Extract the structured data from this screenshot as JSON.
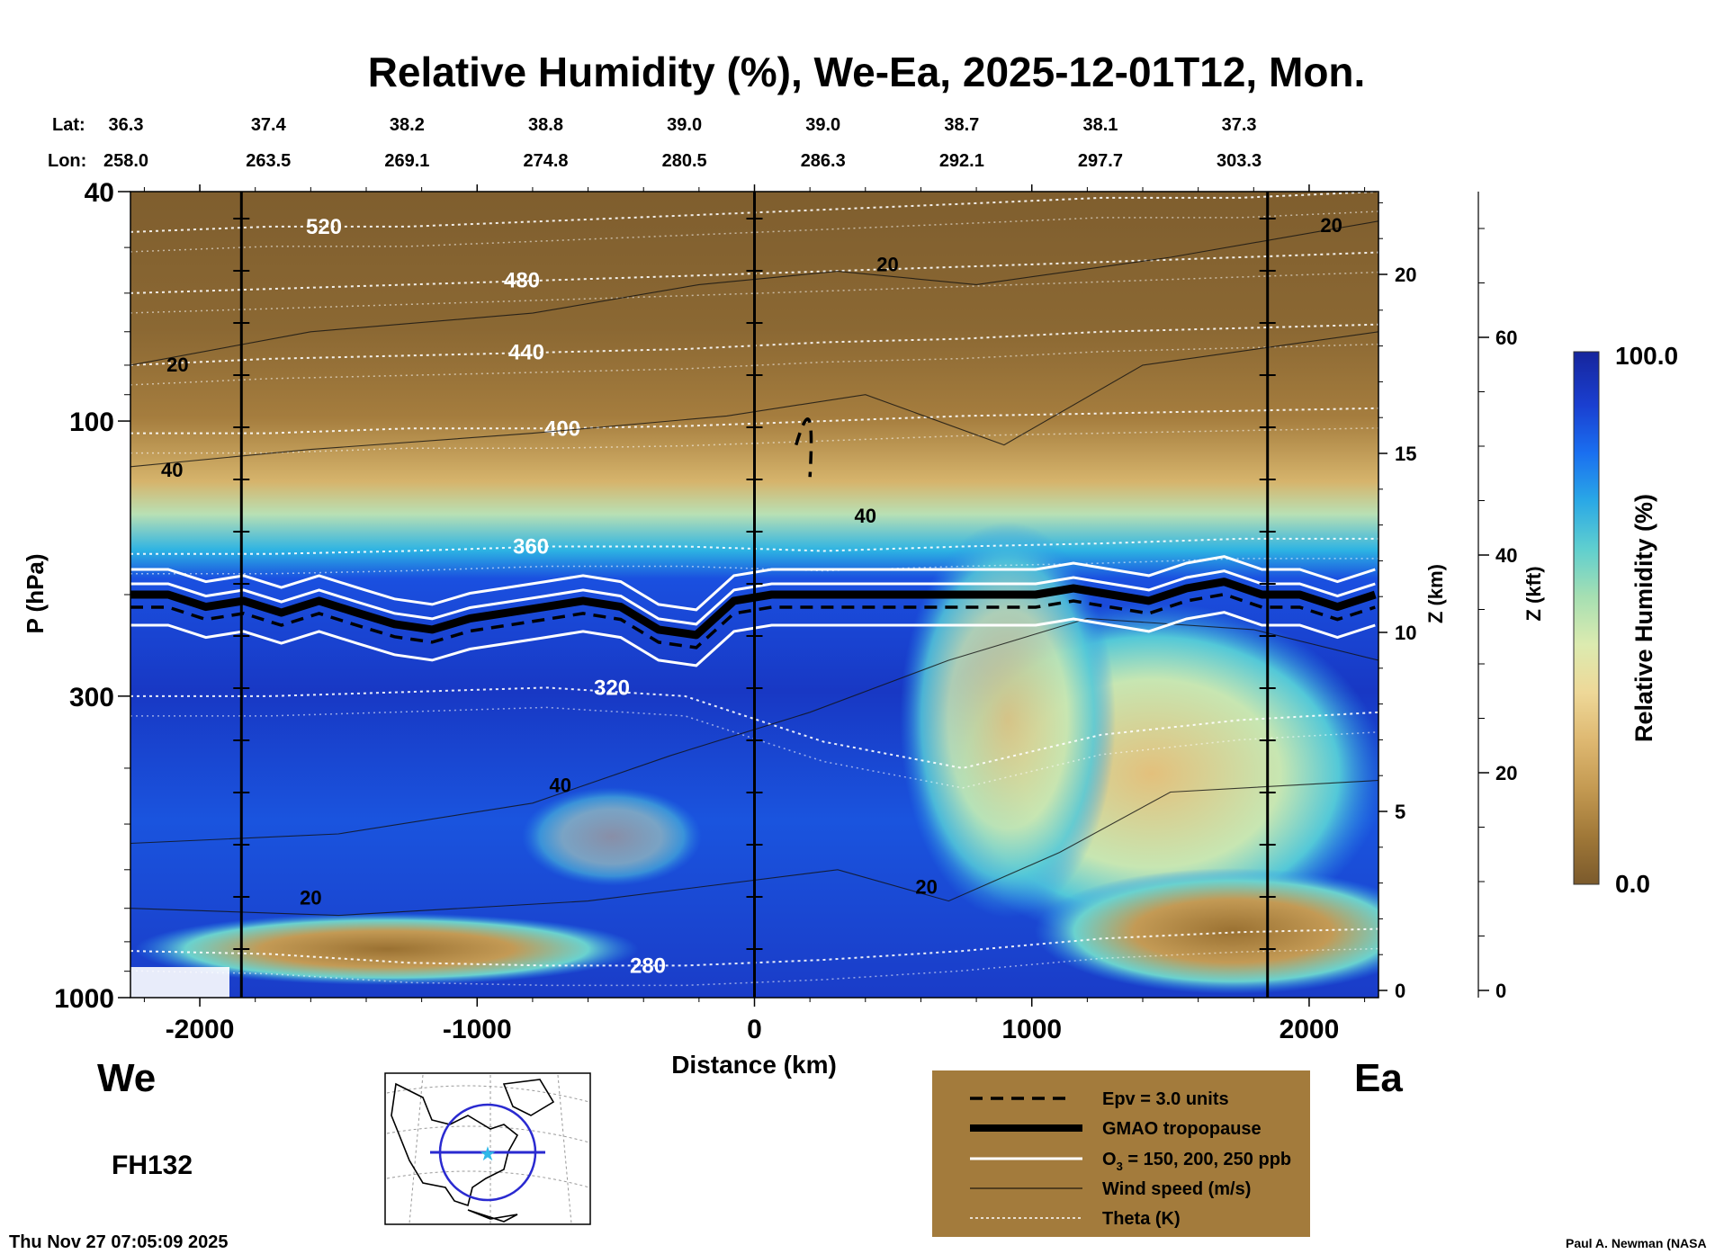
{
  "chart_data": {
    "type": "heatmap",
    "title": "Relative Humidity (%), We-Ea, 2025-12-01T12, Mon.",
    "xlabel": "Distance (km)",
    "ylabel": "P (hPa)",
    "y2label": "Z (km)",
    "y3label": "Z (kft)",
    "xlim": [
      -2250,
      2250
    ],
    "ylim": [
      1000,
      40
    ],
    "yscale": "log",
    "x_ticks": [
      -2000,
      -1000,
      0,
      1000,
      2000
    ],
    "x_tick_labels": [
      "-2000",
      "-1000",
      "0",
      "1000",
      "2000"
    ],
    "y_ticks": [
      40,
      100,
      300,
      1000
    ],
    "y_tick_labels": [
      "40",
      "100",
      "300",
      "1000"
    ],
    "z_km_ticks": [
      0,
      5,
      10,
      15,
      20
    ],
    "z_km_tick_labels": [
      "0",
      "5",
      "10",
      "15",
      "20"
    ],
    "z_kft_ticks": [
      0,
      20,
      40,
      60
    ],
    "z_kft_tick_labels": [
      "0",
      "20",
      "40",
      "60"
    ],
    "lat_label": "Lat:",
    "lon_label": "Lon:",
    "lat": [
      "36.3",
      "37.4",
      "38.2",
      "38.8",
      "39.0",
      "39.0",
      "38.7",
      "38.1",
      "37.3"
    ],
    "lon": [
      "258.0",
      "263.5",
      "269.1",
      "274.8",
      "280.5",
      "286.3",
      "292.1",
      "297.7",
      "303.3"
    ],
    "lat_lon_x": [
      -2250,
      -1850,
      -1350,
      -850,
      -350,
      150,
      650,
      1150,
      1650
    ],
    "vertical_markers_x": [
      -1850,
      0,
      1850
    ],
    "left_end_label": "We",
    "right_end_label": "Ea",
    "colorbar": {
      "label": "Relative Humidity (%)",
      "min": 0.0,
      "max": 100.0,
      "min_label": "0.0",
      "max_label": "100.0",
      "colors": [
        "#7b5a2c",
        "#a07838",
        "#c49a52",
        "#deb871",
        "#eed898",
        "#dcebb0",
        "#a6dfb2",
        "#5fcfcf",
        "#2aa8e6",
        "#1a6ff0",
        "#1a3fd0",
        "#16259c"
      ]
    },
    "theta_contours_K": [
      {
        "value": 280,
        "label": "280",
        "p": [
          830,
          840,
          870,
          880,
          880,
          860,
          830,
          790,
          770,
          760
        ]
      },
      {
        "value": 320,
        "label": "320",
        "p": [
          300,
          300,
          295,
          290,
          300,
          360,
          400,
          350,
          330,
          320
        ]
      },
      {
        "value": 360,
        "label": "360",
        "p": [
          170,
          170,
          168,
          165,
          165,
          168,
          165,
          163,
          160,
          160
        ]
      },
      {
        "value": 400,
        "label": "400",
        "p": [
          105,
          105,
          103,
          103,
          102,
          100,
          98,
          97,
          96,
          95
        ]
      },
      {
        "value": 440,
        "label": "440",
        "p": [
          80,
          78,
          77,
          76,
          75,
          73,
          72,
          70,
          69,
          68
        ]
      },
      {
        "value": 480,
        "label": "480",
        "p": [
          60,
          59,
          58,
          57,
          56,
          55,
          54,
          53,
          52,
          51
        ]
      },
      {
        "value": 520,
        "label": "520",
        "p": [
          47,
          46,
          46,
          45,
          44,
          43,
          42,
          41,
          41,
          40
        ]
      }
    ],
    "wind_contours_ms": [
      {
        "label": "20",
        "x": -2080,
        "p": 82
      },
      {
        "label": "40",
        "x": -2100,
        "p": 125
      },
      {
        "label": "40",
        "x": -700,
        "p": 440
      },
      {
        "label": "20",
        "x": -1600,
        "p": 690
      },
      {
        "label": "20",
        "x": 620,
        "p": 660
      },
      {
        "label": "20",
        "x": 480,
        "p": 55
      },
      {
        "label": "40",
        "x": 400,
        "p": 150
      },
      {
        "label": "20",
        "x": 2080,
        "p": 47
      }
    ],
    "tropopause_p": [
      200,
      200,
      210,
      205,
      215,
      205,
      215,
      225,
      230,
      220,
      215,
      210,
      205,
      210,
      230,
      235,
      205,
      200,
      200,
      200,
      200,
      200,
      200,
      200,
      200,
      195,
      200,
      205,
      195,
      190,
      200,
      200,
      210,
      200
    ],
    "tropopause_x_step_km": 136,
    "legend": {
      "epv": "Epv = 3.0 units",
      "tropopause": "GMAO tropopause",
      "ozone_prefix": "O",
      "ozone_sub": "3",
      "ozone_suffix": " = 150, 200, 250 ppb",
      "wind": "Wind speed (m/s)",
      "theta": "Theta (K)"
    }
  },
  "forecast_hour": "FH132",
  "timestamp": "Thu Nov 27 07:05:09 2025",
  "credit": "Paul A. Newman (NASA",
  "colors": {
    "legend_bg": "#a37b3c",
    "theta_line": "#ffffff",
    "tropopause": "#000000"
  }
}
